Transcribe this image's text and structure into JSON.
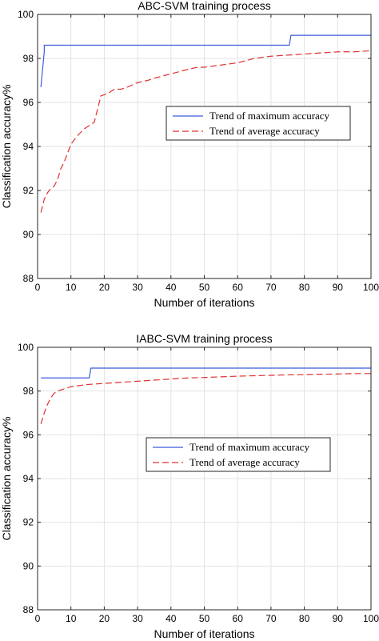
{
  "chart_data": [
    {
      "type": "line",
      "title": "ABC-SVM training process",
      "xlabel": "Number of iterations",
      "ylabel": "Classification accuracy%",
      "xlim": [
        0,
        100
      ],
      "ylim": [
        88,
        100
      ],
      "xticks": [
        0,
        10,
        20,
        30,
        40,
        50,
        60,
        70,
        80,
        90,
        100
      ],
      "yticks": [
        88,
        90,
        92,
        94,
        96,
        98,
        100
      ],
      "grid": true,
      "legend_position": "center-right",
      "series": [
        {
          "name": "Trend of maximum accuracy",
          "color": "#3b5bdb",
          "style": "solid",
          "x": [
            1,
            2,
            2,
            75.5,
            76,
            100
          ],
          "y": [
            96.7,
            98.3,
            98.6,
            98.6,
            99.05,
            99.05
          ]
        },
        {
          "name": "Trend of average accuracy",
          "color": "#e03131",
          "style": "dashed",
          "x": [
            1,
            2,
            3,
            4,
            5,
            6,
            7,
            8,
            9,
            10,
            12,
            14,
            15,
            17,
            19,
            21,
            23,
            25,
            27,
            30,
            33,
            35,
            40,
            45,
            48,
            50,
            55,
            60,
            65,
            70,
            75,
            80,
            85,
            90,
            95,
            100
          ],
          "y": [
            91.0,
            91.6,
            91.9,
            92.1,
            92.2,
            92.5,
            93.0,
            93.3,
            93.7,
            94.1,
            94.5,
            94.8,
            94.9,
            95.1,
            96.3,
            96.4,
            96.6,
            96.6,
            96.7,
            96.9,
            97.0,
            97.1,
            97.3,
            97.5,
            97.6,
            97.6,
            97.7,
            97.8,
            98.0,
            98.1,
            98.15,
            98.2,
            98.25,
            98.3,
            98.3,
            98.35
          ]
        }
      ]
    },
    {
      "type": "line",
      "title": "IABC-SVM training process",
      "xlabel": "Number of iterations",
      "ylabel": "Classification accuracy%",
      "xlim": [
        0,
        100
      ],
      "ylim": [
        88,
        100
      ],
      "xticks": [
        0,
        10,
        20,
        30,
        40,
        50,
        60,
        70,
        80,
        90,
        100
      ],
      "yticks": [
        88,
        90,
        92,
        94,
        96,
        98,
        100
      ],
      "grid": true,
      "legend_position": "center",
      "series": [
        {
          "name": "Trend of maximum accuracy",
          "color": "#3b5bdb",
          "style": "solid",
          "x": [
            1,
            15.5,
            16,
            100
          ],
          "y": [
            98.6,
            98.6,
            99.05,
            99.05
          ]
        },
        {
          "name": "Trend of average accuracy",
          "color": "#e03131",
          "style": "dashed",
          "x": [
            1,
            2,
            3,
            4,
            5,
            6,
            8,
            10,
            15,
            20,
            25,
            30,
            35,
            40,
            45,
            50,
            55,
            60,
            65,
            70,
            75,
            80,
            85,
            90,
            95,
            100
          ],
          "y": [
            96.5,
            97.0,
            97.4,
            97.7,
            97.9,
            98.0,
            98.1,
            98.2,
            98.3,
            98.35,
            98.4,
            98.45,
            98.5,
            98.55,
            98.6,
            98.62,
            98.65,
            98.68,
            98.7,
            98.72,
            98.74,
            98.75,
            98.77,
            98.78,
            98.8,
            98.8
          ]
        }
      ]
    }
  ]
}
